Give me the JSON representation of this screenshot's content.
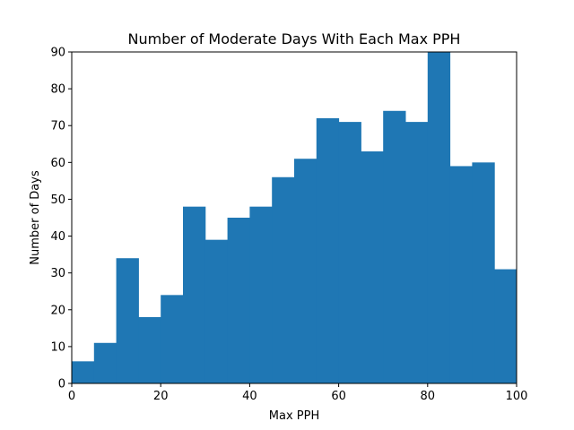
{
  "chart_data": {
    "type": "bar",
    "title": "Number of Moderate Days With Each Max PPH",
    "xlabel": "Max PPH",
    "ylabel": "Number of Days",
    "xlim": [
      0,
      100
    ],
    "ylim": [
      0,
      90
    ],
    "xticks": [
      0,
      20,
      40,
      60,
      80,
      100
    ],
    "yticks": [
      0,
      10,
      20,
      30,
      40,
      50,
      60,
      70,
      80,
      90
    ],
    "bin_edges": [
      0,
      5,
      10,
      15,
      20,
      25,
      30,
      35,
      40,
      45,
      50,
      55,
      60,
      65,
      70,
      75,
      80,
      85,
      90,
      95,
      100
    ],
    "values": [
      6,
      11,
      34,
      18,
      24,
      48,
      39,
      45,
      48,
      56,
      61,
      72,
      71,
      63,
      74,
      71,
      90,
      59,
      60,
      31
    ],
    "bar_color": "#1f77b4",
    "grid": false
  }
}
